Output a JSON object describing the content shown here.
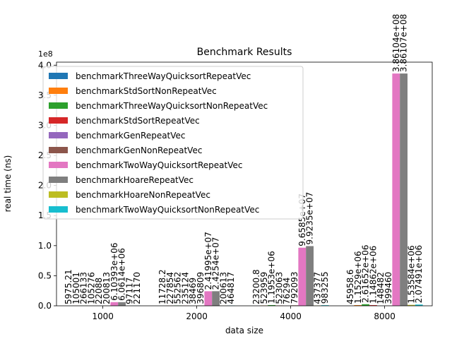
{
  "chart_data": {
    "type": "bar",
    "title": "Benchmark Results",
    "xlabel": "data size",
    "ylabel": "real time (ns)",
    "y_offset_label": "1e8",
    "categories": [
      "1000",
      "2000",
      "4000",
      "8000"
    ],
    "ylim": [
      0,
      405000000
    ],
    "yticks": [
      0,
      50000000,
      100000000,
      150000000,
      200000000,
      250000000,
      300000000,
      350000000,
      400000000
    ],
    "ytick_labels": [
      "0.0",
      "0.5",
      "1.0",
      "1.5",
      "2.0",
      "2.5",
      "3.0",
      "3.5",
      "4.0"
    ],
    "legend_position": "top-left",
    "grid": false,
    "series": [
      {
        "name": "benchmarkThreeWayQuicksortRepeatVec",
        "color": "#1f77b4",
        "values": [
          5975.21,
          11728.2,
          23200.8,
          45958.6
        ],
        "labels": [
          "5975.21",
          "11728.2",
          "23200.8",
          "45958.6"
        ]
      },
      {
        "name": "benchmarkStdSortNonRepeatVec",
        "color": "#ff7f0e",
        "values": [
          105001,
          227854,
          523959,
          1152900
        ],
        "labels": [
          "105001",
          "227854",
          "523959",
          "1.1529e+06"
        ]
      },
      {
        "name": "benchmarkThreeWayQuicksortNonRepeatVec",
        "color": "#2ca02c",
        "values": [
          266133,
          552562,
          1195300,
          2616520
        ],
        "labels": [
          "266133",
          "552562",
          "1.1953e+06",
          "2.61652e+06"
        ]
      },
      {
        "name": "benchmarkStdSortRepeatVec",
        "color": "#d62728",
        "values": [
          105276,
          235124,
          523063,
          1148620
        ],
        "labels": [
          "105276",
          "235124",
          "523063",
          "1.14862e+06"
        ]
      },
      {
        "name": "benchmarkGenRepeatVec",
        "color": "#9467bd",
        "values": [
          22088,
          38469,
          76294,
          148482
        ],
        "labels": [
          "22088",
          "38469",
          "76294",
          "148482"
        ]
      },
      {
        "name": "benchmarkGenNonRepeatVec",
        "color": "#8c564b",
        "values": [
          200813,
          396809,
          792093,
          399460
        ],
        "labels": [
          "200813",
          "396809",
          "792093",
          "399460"
        ]
      },
      {
        "name": "benchmarkTwoWayQuicksortRepeatVec",
        "color": "#e377c2",
        "values": [
          6103930,
          24199500,
          96585000,
          386104000
        ],
        "labels": [
          "6.10393e+06",
          "2.41995e+07",
          "9.6585e+07",
          "3.86104e+08"
        ]
      },
      {
        "name": "benchmarkHoareRepeatVec",
        "color": "#7f7f7f",
        "values": [
          6061400,
          24254000,
          99235000,
          386107000
        ],
        "labels": [
          "6.0614e+06",
          "2.4254e+07",
          "9.9235e+07",
          "3.86107e+08"
        ]
      },
      {
        "name": "benchmarkHoareNonRepeatVec",
        "color": "#bcbd22",
        "values": [
          97117,
          200613,
          437377,
          1535840
        ],
        "labels": [
          "97117",
          "200613",
          "437377",
          "1.53584e+06"
        ]
      },
      {
        "name": "benchmarkTwoWayQuicksortNonRepeatVec",
        "color": "#17becf",
        "values": [
          221170,
          464817,
          983255,
          2074910
        ],
        "labels": [
          "221170",
          "464817",
          "983255",
          "2.07491e+06"
        ]
      }
    ]
  }
}
